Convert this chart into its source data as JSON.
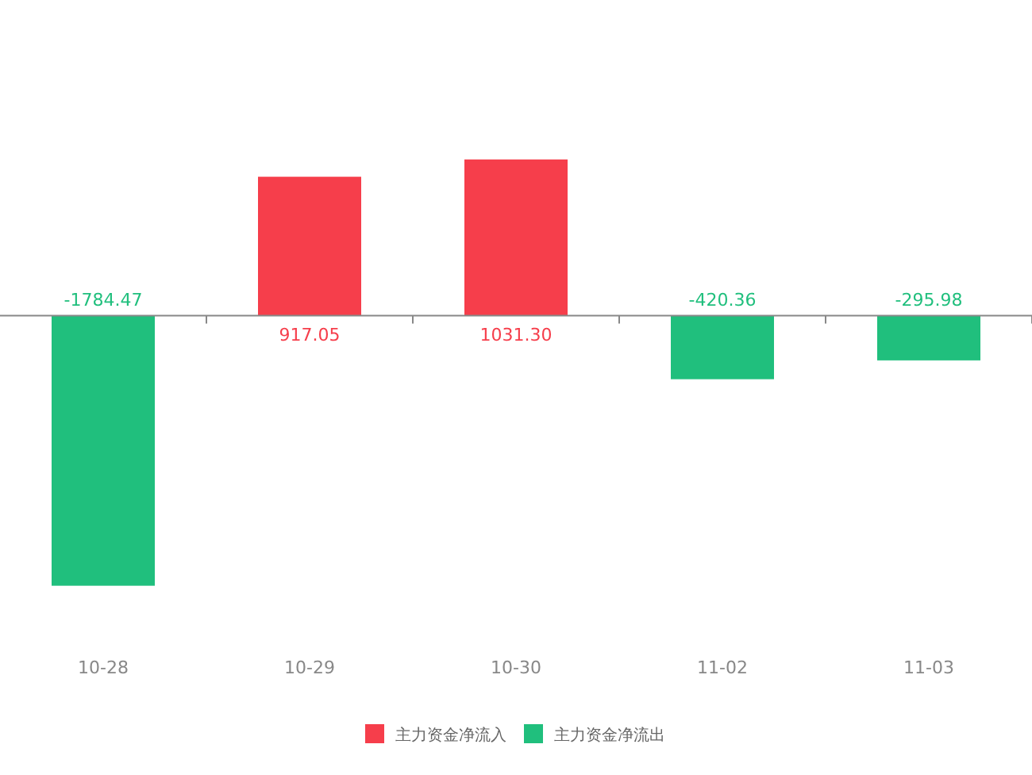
{
  "chart_data": {
    "type": "bar",
    "categories": [
      "10-28",
      "10-29",
      "10-30",
      "11-02",
      "11-03"
    ],
    "data_labels": true,
    "legend": "bottom",
    "series": [
      {
        "name": "主力资金净流入",
        "color": "#f63e4b",
        "values": [
          null,
          917.05,
          1031.3,
          null,
          null
        ],
        "value_labels": [
          null,
          "917.05",
          "1031.30",
          null,
          null
        ]
      },
      {
        "name": "主力资金净流出",
        "color": "#20bf7d",
        "values": [
          -1784.47,
          null,
          null,
          -420.36,
          -295.98
        ],
        "value_labels": [
          "-1784.47",
          null,
          null,
          "-420.36",
          "-295.98"
        ]
      }
    ]
  }
}
